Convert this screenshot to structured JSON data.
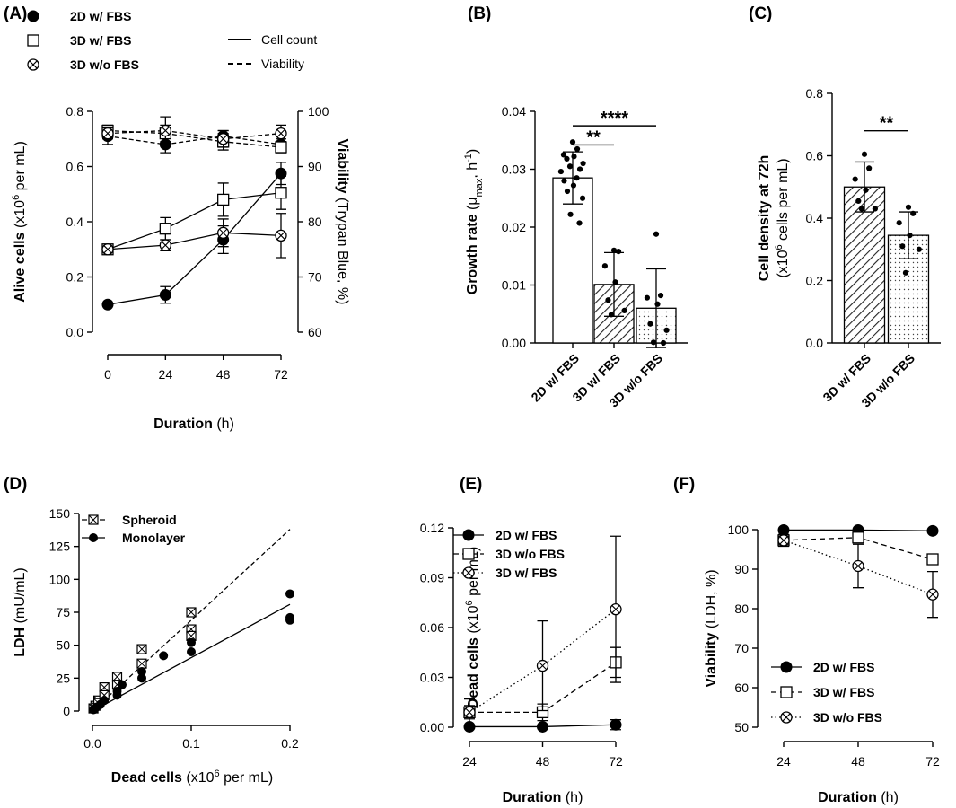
{
  "chart_data": [
    {
      "panel": "(A)",
      "type": "line",
      "xlabel_bold": "Duration",
      "xlabel_rest": " (h)",
      "ylabel_bold": "Alive cells",
      "ylabel_rest": " (x10",
      "ylabel_sup": "6",
      "ylabel_tail": " per mL)",
      "y2label_bold": "Viability",
      "y2label_rest": " (Trypan Blue, %)",
      "x": [
        0,
        24,
        48,
        72
      ],
      "xlim": [
        0,
        72
      ],
      "ylim": [
        0,
        0.8
      ],
      "y2lim": [
        60,
        100
      ],
      "yticks": [
        "0.0",
        "0.2",
        "0.4",
        "0.6",
        "0.8"
      ],
      "y2ticks": [
        "60",
        "70",
        "80",
        "90",
        "100"
      ],
      "xticks": [
        "0",
        "24",
        "48",
        "72"
      ],
      "legend": [
        {
          "label": "2D w/ FBS",
          "marker": "filled-circle"
        },
        {
          "label": "3D w/ FBS",
          "marker": "open-square"
        },
        {
          "label": "3D w/o FBS",
          "marker": "crossed-circle"
        }
      ],
      "line_legend": [
        {
          "label": "Cell count",
          "style": "solid"
        },
        {
          "label": "Viability",
          "style": "dashed"
        }
      ],
      "series": [
        {
          "name": "2D w/ FBS",
          "measure": "Cell count",
          "marker": "filled-circle",
          "values": [
            0.1,
            0.135,
            0.335,
            0.575
          ],
          "errors": [
            0.0,
            0.03,
            0.05,
            0.04
          ]
        },
        {
          "name": "3D w/ FBS",
          "measure": "Cell count",
          "marker": "open-square",
          "values": [
            0.3,
            0.375,
            0.48,
            0.505
          ],
          "errors": [
            0.0,
            0.04,
            0.06,
            0.06
          ]
        },
        {
          "name": "3D w/o FBS",
          "measure": "Cell count",
          "marker": "crossed-circle",
          "values": [
            0.3,
            0.315,
            0.36,
            0.35
          ],
          "errors": [
            0.0,
            0.02,
            0.05,
            0.08
          ]
        },
        {
          "name": "2D w/ FBS",
          "measure": "Viability",
          "marker": "filled-circle",
          "values": [
            95.5,
            94,
            95.5,
            94
          ],
          "errors": [
            1.5,
            1.5,
            1.0,
            1.0
          ]
        },
        {
          "name": "3D w/ FBS",
          "measure": "Viability",
          "marker": "open-square",
          "values": [
            96.5,
            96,
            94.5,
            93.5
          ],
          "errors": [
            1.0,
            1.5,
            1.5,
            1.0
          ]
        },
        {
          "name": "3D w/o FBS",
          "measure": "Viability",
          "marker": "crossed-circle",
          "values": [
            96,
            96.5,
            95,
            96
          ],
          "errors": [
            1.0,
            2.5,
            1.5,
            1.5
          ]
        }
      ]
    },
    {
      "panel": "(B)",
      "type": "bar",
      "ylabel_bold": "Growth rate",
      "ylabel_mu": " (μ",
      "ylabel_sub": "max",
      "ylabel_mid": ", h",
      "ylabel_sup": "-1",
      "ylabel_tail": ")",
      "categories": [
        "2D w/ FBS",
        "3D w/ FBS",
        "3D w/o FBS"
      ],
      "values": [
        0.0285,
        0.0101,
        0.006
      ],
      "errors": [
        0.0045,
        0.0055,
        0.0068
      ],
      "fills": [
        "white",
        "hatch",
        "dots"
      ],
      "ylim": [
        0,
        0.04
      ],
      "yticks": [
        "0.00",
        "0.01",
        "0.02",
        "0.03",
        "0.04"
      ],
      "points": [
        [
          0.0347,
          0.0335,
          0.0325,
          0.0322,
          0.0318,
          0.031,
          0.0305,
          0.03,
          0.0296,
          0.0285,
          0.028,
          0.0272,
          0.0262,
          0.025,
          0.0222,
          0.0207
        ],
        [
          0.016,
          0.0158,
          0.0133,
          0.0105,
          0.0074,
          0.0056,
          0.0049
        ],
        [
          0.0188,
          0.0082,
          0.0078,
          0.0067,
          0.0033,
          0.0022,
          0.0001,
          0.0
        ]
      ],
      "significance": [
        {
          "text": "**",
          "from": 0,
          "to": 1,
          "y": 0.0342
        },
        {
          "text": "****",
          "from": 0,
          "to": 2,
          "y": 0.0375
        }
      ]
    },
    {
      "panel": "(C)",
      "type": "bar",
      "ylabel_bold": "Cell density at 72h",
      "ylabel2_pre": "(x10",
      "ylabel2_sup": "6",
      "ylabel2_tail": " cells per mL)",
      "categories": [
        "3D w/ FBS",
        "3D w/o FBS"
      ],
      "values": [
        0.5,
        0.345
      ],
      "errors": [
        0.08,
        0.075
      ],
      "fills": [
        "hatch",
        "dots"
      ],
      "ylim": [
        0,
        0.8
      ],
      "yticks": [
        "0.0",
        "0.2",
        "0.4",
        "0.6",
        "0.8"
      ],
      "points": [
        [
          0.605,
          0.56,
          0.525,
          0.49,
          0.455,
          0.43,
          0.43
        ],
        [
          0.435,
          0.415,
          0.385,
          0.345,
          0.31,
          0.3,
          0.225
        ]
      ],
      "significance": [
        {
          "text": "**",
          "from": 0,
          "to": 1,
          "y": 0.68
        }
      ]
    },
    {
      "panel": "(D)",
      "type": "scatter",
      "xlabel_bold": "Dead cells",
      "xlabel_rest": " (x10",
      "xlabel_sup": "6",
      "xlabel_tail": " per mL)",
      "ylabel_bold": "LDH",
      "ylabel_rest": " (mU/mL)",
      "xlim": [
        0,
        0.2
      ],
      "ylim": [
        0,
        150
      ],
      "xticks": [
        "0.0",
        "0.1",
        "0.2"
      ],
      "yticks": [
        "0",
        "25",
        "50",
        "75",
        "100",
        "125",
        "150"
      ],
      "legend": [
        {
          "label": "Spheroid",
          "marker": "crossed-square",
          "style": "dashed"
        },
        {
          "label": "Monolayer",
          "marker": "filled-circle",
          "style": "solid"
        }
      ],
      "series": [
        {
          "name": "Spheroid",
          "marker": "crossed-square",
          "fit": {
            "slope": 690,
            "intercept": 0
          },
          "points": [
            [
              0.001,
              2
            ],
            [
              0.003,
              4
            ],
            [
              0.006,
              8
            ],
            [
              0.006,
              6
            ],
            [
              0.012,
              18
            ],
            [
              0.012,
              12
            ],
            [
              0.025,
              26
            ],
            [
              0.025,
              20
            ],
            [
              0.05,
              47
            ],
            [
              0.05,
              36
            ],
            [
              0.1,
              75
            ],
            [
              0.1,
              62
            ],
            [
              0.1,
              57
            ]
          ]
        },
        {
          "name": "Monolayer",
          "marker": "filled-circle",
          "fit": {
            "slope": 405,
            "intercept": 0
          },
          "points": [
            [
              0.001,
              1
            ],
            [
              0.004,
              3
            ],
            [
              0.008,
              5
            ],
            [
              0.012,
              8
            ],
            [
              0.025,
              12
            ],
            [
              0.025,
              15
            ],
            [
              0.03,
              20
            ],
            [
              0.05,
              25
            ],
            [
              0.05,
              30
            ],
            [
              0.072,
              42
            ],
            [
              0.1,
              45
            ],
            [
              0.1,
              52
            ],
            [
              0.2,
              89
            ],
            [
              0.2,
              71
            ],
            [
              0.2,
              69
            ]
          ]
        }
      ]
    },
    {
      "panel": "(E)",
      "type": "line",
      "xlabel_bold": "Duration",
      "xlabel_rest": " (h)",
      "ylabel_bold": "Dead cells",
      "ylabel_rest": "  (x10",
      "ylabel_sup": "6",
      "ylabel_tail": " per mL)",
      "x": [
        24,
        48,
        72
      ],
      "xlim": [
        24,
        72
      ],
      "ylim": [
        0,
        0.12
      ],
      "xticks": [
        "24",
        "48",
        "72"
      ],
      "yticks": [
        "0.00",
        "0.03",
        "0.06",
        "0.09",
        "0.12"
      ],
      "legend": [
        {
          "label": "2D w/ FBS",
          "marker": "filled-circle",
          "style": "solid"
        },
        {
          "label": "3D w/o FBS",
          "marker": "open-square",
          "style": "dashed"
        },
        {
          "label": "3D w/ FBS",
          "marker": "crossed-circle",
          "style": "dotted"
        }
      ],
      "series": [
        {
          "name": "2D w/ FBS",
          "marker": "filled-circle",
          "style": "solid",
          "values": [
            0.0003,
            0.0003,
            0.0015
          ],
          "errors": [
            0,
            0,
            0.003
          ]
        },
        {
          "name": "3D w/o FBS",
          "marker": "open-square",
          "style": "dashed",
          "values": [
            0.009,
            0.009,
            0.039
          ],
          "errors": [
            0.008,
            0.005,
            0.009
          ]
        },
        {
          "name": "3D w/ FBS",
          "marker": "crossed-circle",
          "style": "dotted",
          "values": [
            0.009,
            0.037,
            0.071
          ],
          "errors": [
            0.004,
            0.027,
            0.044
          ]
        }
      ]
    },
    {
      "panel": "(F)",
      "type": "line",
      "xlabel_bold": "Duration",
      "xlabel_rest": " (h)",
      "ylabel_bold": "Viability",
      "ylabel_rest": " (LDH, %)",
      "x": [
        24,
        48,
        72
      ],
      "xlim": [
        24,
        72
      ],
      "ylim": [
        50,
        100
      ],
      "xticks": [
        "24",
        "48",
        "72"
      ],
      "yticks": [
        "50",
        "60",
        "70",
        "80",
        "90",
        "100"
      ],
      "legend": [
        {
          "label": "2D w/ FBS",
          "marker": "filled-circle",
          "style": "solid"
        },
        {
          "label": "3D w/ FBS",
          "marker": "open-square",
          "style": "dashed"
        },
        {
          "label": "3D w/o FBS",
          "marker": "crossed-circle",
          "style": "dotted"
        }
      ],
      "series": [
        {
          "name": "2D w/ FBS",
          "marker": "filled-circle",
          "style": "solid",
          "values": [
            99.9,
            99.9,
            99.7
          ],
          "errors": [
            0.2,
            0.2,
            0.3
          ]
        },
        {
          "name": "3D w/ FBS",
          "marker": "open-square",
          "style": "dashed",
          "values": [
            97.3,
            98,
            92.5
          ],
          "errors": [
            1.5,
            1.0,
            1.0
          ]
        },
        {
          "name": "3D w/o FBS",
          "marker": "crossed-circle",
          "style": "dotted",
          "values": [
            97.3,
            90.8,
            83.6
          ],
          "errors": [
            1.0,
            5.5,
            5.8
          ]
        }
      ]
    }
  ]
}
